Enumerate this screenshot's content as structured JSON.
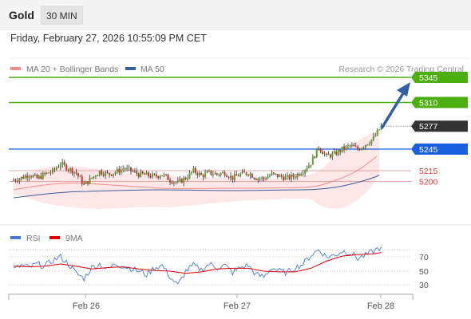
{
  "header": {
    "instrument": "Gold",
    "interval": "30 MIN"
  },
  "datetime": "Friday, February 27, 2026 10:55:09 PM CET",
  "legend": {
    "ma20": {
      "label": "MA 20 + Bollinger Bands",
      "color": "#f28c8c"
    },
    "ma50": {
      "label": "MA 50",
      "color": "#3a5f9f"
    },
    "copyright": "Research © 2026 Trading Central"
  },
  "chart_data": [
    {
      "type": "candlestick",
      "title": "Gold 30 MIN",
      "x_ticks": [
        "Feb 26",
        "Feb 27",
        "Feb 28"
      ],
      "y_range": [
        5150,
        5360
      ],
      "levels": [
        {
          "value": 5345,
          "label": "5345",
          "style": "target",
          "color": "#4caf0f"
        },
        {
          "value": 5310,
          "label": "5310",
          "style": "target",
          "color": "#4caf0f"
        },
        {
          "value": 5277,
          "label": "5277",
          "style": "last_price",
          "color": "#333333"
        },
        {
          "value": 5245,
          "label": "5245",
          "style": "pivot",
          "color": "#1a5fe0"
        },
        {
          "value": 5215,
          "label": "5215",
          "style": "support",
          "color": "#e53935"
        },
        {
          "value": 5200,
          "label": "5200",
          "style": "support",
          "color": "#e53935"
        }
      ],
      "trend_arrow": {
        "direction": "up",
        "from": 5280,
        "to": 5345,
        "color": "#2f5fa7"
      },
      "close_points": [
        [
          0,
          5202
        ],
        [
          4,
          5205
        ],
        [
          8,
          5210
        ],
        [
          12,
          5204
        ],
        [
          16,
          5210
        ],
        [
          20,
          5214
        ],
        [
          24,
          5225
        ],
        [
          28,
          5218
        ],
        [
          32,
          5212
        ],
        [
          36,
          5195
        ],
        [
          40,
          5205
        ],
        [
          44,
          5214
        ],
        [
          48,
          5210
        ],
        [
          52,
          5213
        ],
        [
          56,
          5218
        ],
        [
          60,
          5215
        ],
        [
          64,
          5210
        ],
        [
          68,
          5209
        ],
        [
          72,
          5207
        ],
        [
          76,
          5210
        ],
        [
          80,
          5202
        ],
        [
          84,
          5198
        ],
        [
          88,
          5205
        ],
        [
          92,
          5215
        ],
        [
          96,
          5208
        ],
        [
          100,
          5212
        ],
        [
          104,
          5210
        ],
        [
          108,
          5212
        ],
        [
          112,
          5205
        ],
        [
          116,
          5210
        ],
        [
          120,
          5212
        ],
        [
          124,
          5205
        ],
        [
          128,
          5204
        ],
        [
          132,
          5210
        ],
        [
          136,
          5207
        ],
        [
          140,
          5205
        ],
        [
          144,
          5208
        ],
        [
          148,
          5215
        ],
        [
          152,
          5226
        ],
        [
          156,
          5248
        ],
        [
          160,
          5235
        ],
        [
          164,
          5238
        ],
        [
          168,
          5245
        ],
        [
          172,
          5250
        ],
        [
          176,
          5245
        ],
        [
          180,
          5252
        ],
        [
          184,
          5260
        ],
        [
          188,
          5277
        ]
      ]
    },
    {
      "type": "line",
      "title": "RSI",
      "y_ticks": [
        70,
        50,
        30
      ],
      "series": [
        {
          "name": "RSI",
          "color": "#4a78d8",
          "points": [
            [
              0,
              52
            ],
            [
              4,
              58
            ],
            [
              8,
              55
            ],
            [
              12,
              60
            ],
            [
              16,
              57
            ],
            [
              20,
              65
            ],
            [
              24,
              70
            ],
            [
              28,
              60
            ],
            [
              32,
              47
            ],
            [
              36,
              40
            ],
            [
              40,
              55
            ],
            [
              44,
              60
            ],
            [
              48,
              52
            ],
            [
              52,
              60
            ],
            [
              56,
              57
            ],
            [
              60,
              54
            ],
            [
              64,
              50
            ],
            [
              68,
              45
            ],
            [
              72,
              55
            ],
            [
              76,
              58
            ],
            [
              80,
              42
            ],
            [
              84,
              30
            ],
            [
              88,
              50
            ],
            [
              92,
              58
            ],
            [
              96,
              52
            ],
            [
              100,
              60
            ],
            [
              104,
              55
            ],
            [
              108,
              58
            ],
            [
              112,
              48
            ],
            [
              116,
              55
            ],
            [
              120,
              58
            ],
            [
              124,
              45
            ],
            [
              128,
              42
            ],
            [
              132,
              55
            ],
            [
              136,
              50
            ],
            [
              140,
              48
            ],
            [
              144,
              55
            ],
            [
              148,
              60
            ],
            [
              152,
              72
            ],
            [
              156,
              80
            ],
            [
              160,
              70
            ],
            [
              164,
              72
            ],
            [
              168,
              78
            ],
            [
              172,
              76
            ],
            [
              176,
              68
            ],
            [
              180,
              72
            ],
            [
              184,
              78
            ],
            [
              188,
              84
            ]
          ]
        },
        {
          "name": "9MA",
          "color": "#e00000",
          "points": [
            [
              0,
              57
            ],
            [
              8,
              56
            ],
            [
              16,
              57
            ],
            [
              24,
              60
            ],
            [
              32,
              57
            ],
            [
              40,
              53
            ],
            [
              48,
              55
            ],
            [
              56,
              56
            ],
            [
              64,
              53
            ],
            [
              72,
              51
            ],
            [
              80,
              50
            ],
            [
              88,
              47
            ],
            [
              96,
              49
            ],
            [
              104,
              53
            ],
            [
              112,
              54
            ],
            [
              120,
              54
            ],
            [
              128,
              50
            ],
            [
              136,
              49
            ],
            [
              144,
              49
            ],
            [
              152,
              54
            ],
            [
              160,
              64
            ],
            [
              168,
              71
            ],
            [
              176,
              73
            ],
            [
              184,
              74
            ],
            [
              188,
              76
            ]
          ]
        }
      ]
    }
  ]
}
